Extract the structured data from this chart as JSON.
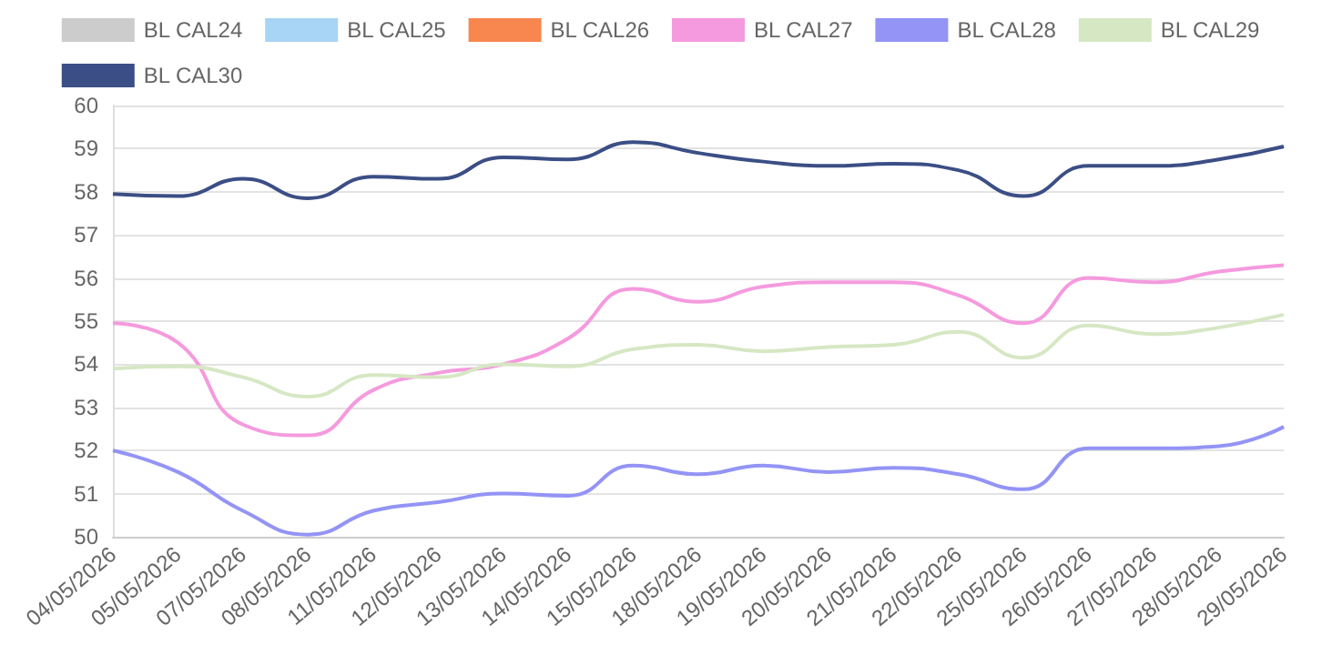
{
  "chart_data": {
    "type": "line",
    "categories": [
      "04/05/2026",
      "05/05/2026",
      "07/05/2026",
      "08/05/2026",
      "11/05/2026",
      "12/05/2026",
      "13/05/2026",
      "14/05/2026",
      "15/05/2026",
      "18/05/2026",
      "19/05/2026",
      "20/05/2026",
      "21/05/2026",
      "22/05/2026",
      "25/05/2026",
      "26/05/2026",
      "27/05/2026",
      "28/05/2026",
      "29/05/2026"
    ],
    "series": [
      {
        "name": "BL CAL24",
        "color": "#cccccc",
        "values": [
          null,
          null,
          null,
          null,
          null,
          null,
          null,
          null,
          null,
          null,
          null,
          null,
          null,
          null,
          null,
          null,
          null,
          null,
          null
        ]
      },
      {
        "name": "BL CAL25",
        "color": "#a8d4f5",
        "values": [
          null,
          null,
          null,
          null,
          null,
          null,
          null,
          null,
          null,
          null,
          null,
          null,
          null,
          null,
          null,
          null,
          null,
          null,
          null
        ]
      },
      {
        "name": "BL CAL26",
        "color": "#f7874f",
        "values": [
          null,
          null,
          null,
          null,
          null,
          null,
          null,
          null,
          null,
          null,
          null,
          null,
          null,
          null,
          null,
          null,
          null,
          null,
          null
        ]
      },
      {
        "name": "BL CAL27",
        "color": "#f59ade",
        "values": [
          54.95,
          54.5,
          52.6,
          52.35,
          53.4,
          53.8,
          54.0,
          54.6,
          55.75,
          55.45,
          55.8,
          55.9,
          55.9,
          55.6,
          54.95,
          56.0,
          55.9,
          56.15,
          56.3
        ]
      },
      {
        "name": "BL CAL28",
        "color": "#9394f5",
        "values": [
          52.0,
          51.5,
          50.6,
          50.05,
          50.6,
          50.8,
          51.0,
          50.95,
          51.65,
          51.45,
          51.65,
          51.5,
          51.6,
          51.45,
          51.1,
          52.05,
          52.05,
          52.1,
          52.55
        ]
      },
      {
        "name": "BL CAL29",
        "color": "#d6e7c4",
        "values": [
          53.9,
          53.95,
          53.7,
          53.25,
          53.75,
          53.7,
          54.0,
          53.95,
          54.35,
          54.45,
          54.3,
          54.4,
          54.45,
          54.75,
          54.15,
          54.9,
          54.7,
          54.85,
          55.15
        ]
      },
      {
        "name": "BL CAL30",
        "color": "#3b4e85",
        "values": [
          57.95,
          57.9,
          58.3,
          57.85,
          58.35,
          58.3,
          58.8,
          58.75,
          59.15,
          58.9,
          58.7,
          58.6,
          58.65,
          58.5,
          57.9,
          58.6,
          58.6,
          58.75,
          59.05
        ]
      }
    ],
    "ylim": [
      50,
      60
    ],
    "yticks": [
      50,
      51,
      52,
      53,
      54,
      55,
      56,
      57,
      58,
      59,
      60
    ],
    "grid": "y",
    "legend": "top",
    "marker": "none",
    "line_style": "solid"
  }
}
